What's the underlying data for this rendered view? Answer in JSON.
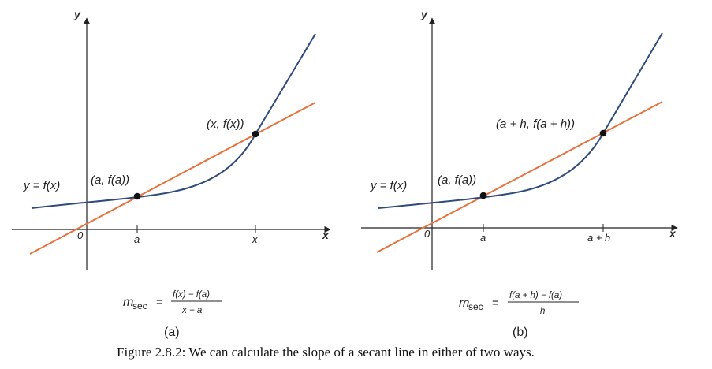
{
  "colors": {
    "curve": "#2f4b7c",
    "secant": "#e8703a",
    "axis": "#222222",
    "point": "#111111"
  },
  "panels": [
    {
      "id": "a",
      "y_axis_label": "y",
      "x_axis_label": "x",
      "origin_label": "0",
      "curve_label": "y = f(x)",
      "point1_label": "(a, f(a))",
      "point2_label": "(x, f(x))",
      "tick1_label": "a",
      "tick2_label": "x",
      "formula": {
        "m": "m",
        "sub": "sec",
        "eq": "=",
        "numerator": "f(x) − f(a)",
        "denominator": "x − a"
      },
      "sublabel": "(a)"
    },
    {
      "id": "b",
      "y_axis_label": "y",
      "x_axis_label": "x",
      "origin_label": "0",
      "curve_label": "y = f(x)",
      "point1_label": "(a, f(a))",
      "point2_label": "(a + h, f(a + h))",
      "tick1_label": "a",
      "tick2_label": "a + h",
      "formula": {
        "m": "m",
        "sub": "sec",
        "eq": "=",
        "numerator": "f(a + h) − f(a)",
        "denominator": "h"
      },
      "sublabel": "(b)"
    }
  ],
  "caption": "Figure 2.8.2: We can calculate the slope of a secant line in either of two ways."
}
